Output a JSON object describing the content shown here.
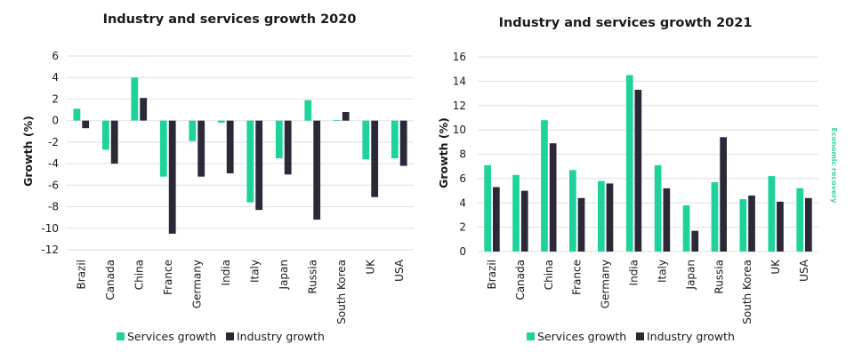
{
  "colors": {
    "services": "#1ed39b",
    "industry": "#2b2838",
    "side_note": "#3ed3a4"
  },
  "side_note": "Economic recovery",
  "chart_data": [
    {
      "type": "bar",
      "title": "Industry and services growth 2020",
      "xlabel": "",
      "ylabel": "Growth (%)",
      "ylim": [
        -12,
        6
      ],
      "yticks": [
        6,
        4,
        2,
        0,
        -2,
        -4,
        -6,
        -8,
        -10,
        -12
      ],
      "grid": true,
      "legend": "bottom",
      "categories": [
        "Brazil",
        "Canada",
        "China",
        "France",
        "Germany",
        "India",
        "Italy",
        "Japan",
        "Russia",
        "South Korea",
        "UK",
        "USA"
      ],
      "series": [
        {
          "name": "Services growth",
          "values": [
            1.1,
            -2.7,
            4.0,
            -5.2,
            -1.9,
            -0.2,
            -7.6,
            -3.5,
            1.9,
            0.05,
            -3.6,
            -3.5
          ]
        },
        {
          "name": "Industry growth",
          "values": [
            -0.7,
            -4.0,
            2.1,
            -10.5,
            -5.2,
            -4.9,
            -8.3,
            -5.0,
            -9.2,
            0.8,
            -7.1,
            -4.2
          ]
        }
      ]
    },
    {
      "type": "bar",
      "title": "Industry and services growth 2021",
      "xlabel": "",
      "ylabel": "Growth (%)",
      "ylim": [
        0,
        16
      ],
      "yticks": [
        16,
        14,
        12,
        10,
        8,
        6,
        4,
        2,
        0
      ],
      "grid": true,
      "legend": "bottom",
      "categories": [
        "Brazil",
        "Canada",
        "China",
        "France",
        "Germany",
        "India",
        "Italy",
        "Japan",
        "Russia",
        "South Korea",
        "UK",
        "USA"
      ],
      "series": [
        {
          "name": "Services growth",
          "values": [
            7.1,
            6.3,
            10.8,
            6.7,
            5.8,
            14.5,
            7.1,
            3.8,
            5.7,
            4.3,
            6.2,
            5.2
          ]
        },
        {
          "name": "Industry growth",
          "values": [
            5.3,
            5.0,
            8.9,
            4.4,
            5.6,
            13.3,
            5.2,
            1.7,
            9.4,
            4.6,
            4.1,
            4.4
          ]
        }
      ]
    }
  ]
}
